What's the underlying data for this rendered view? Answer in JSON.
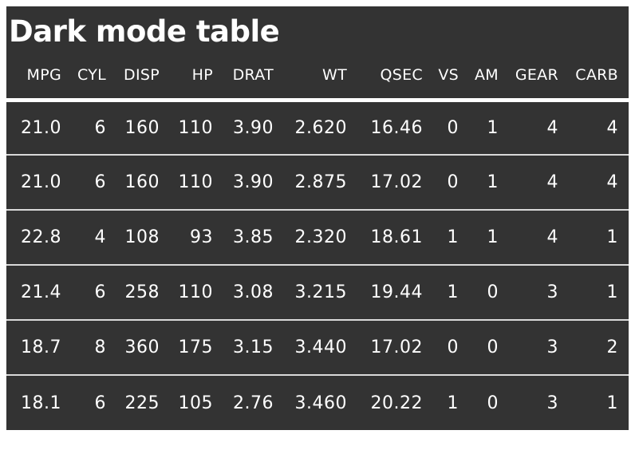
{
  "theme": {
    "page_background": "#ffffff",
    "table_background": "#333333",
    "text_color": "#ffffff",
    "header_separator_color": "#ffffff",
    "row_separator_color": "#d9d9d9"
  },
  "chart_data": {
    "type": "table",
    "title": "Dark mode table",
    "columns": [
      "MPG",
      "CYL",
      "DISP",
      "HP",
      "DRAT",
      "WT",
      "QSEC",
      "VS",
      "AM",
      "GEAR",
      "CARB"
    ],
    "rows": [
      [
        "21.0",
        "6",
        "160",
        "110",
        "3.90",
        "2.620",
        "16.46",
        "0",
        "1",
        "4",
        "4"
      ],
      [
        "21.0",
        "6",
        "160",
        "110",
        "3.90",
        "2.875",
        "17.02",
        "0",
        "1",
        "4",
        "4"
      ],
      [
        "22.8",
        "4",
        "108",
        "93",
        "3.85",
        "2.320",
        "18.61",
        "1",
        "1",
        "4",
        "1"
      ],
      [
        "21.4",
        "6",
        "258",
        "110",
        "3.08",
        "3.215",
        "19.44",
        "1",
        "0",
        "3",
        "1"
      ],
      [
        "18.7",
        "8",
        "360",
        "175",
        "3.15",
        "3.440",
        "17.02",
        "0",
        "0",
        "3",
        "2"
      ],
      [
        "18.1",
        "6",
        "225",
        "105",
        "2.76",
        "3.460",
        "20.22",
        "1",
        "0",
        "3",
        "1"
      ]
    ]
  }
}
